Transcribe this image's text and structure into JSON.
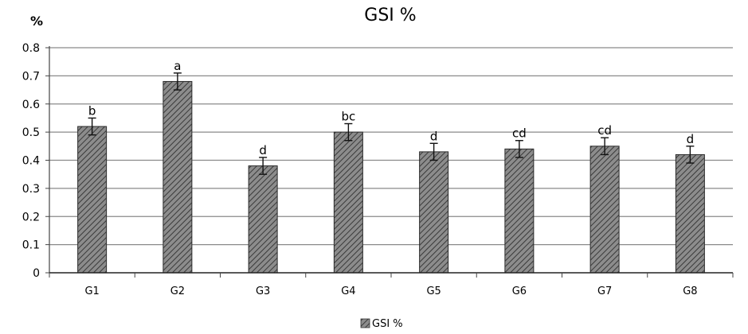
{
  "chart_data": {
    "type": "bar",
    "title": "GSI %",
    "ylabel": "%",
    "xlabel": "",
    "ylim": [
      0,
      0.8
    ],
    "yticks": [
      "0",
      "0.1",
      "0.2",
      "0.3",
      "0.4",
      "0.5",
      "0.6",
      "0.7",
      "0.8"
    ],
    "grid": true,
    "legend_position": "bottom",
    "categories": [
      "G1",
      "G2",
      "G3",
      "G4",
      "G5",
      "G6",
      "G7",
      "G8"
    ],
    "series": [
      {
        "name": "GSI %",
        "values": [
          0.52,
          0.68,
          0.38,
          0.5,
          0.43,
          0.44,
          0.45,
          0.42
        ],
        "errors": [
          0.03,
          0.03,
          0.03,
          0.03,
          0.03,
          0.03,
          0.03,
          0.03
        ],
        "labels": [
          "b",
          "a",
          "d",
          "bc",
          "d",
          "cd",
          "cd",
          "d"
        ],
        "color": "#666666"
      }
    ]
  }
}
